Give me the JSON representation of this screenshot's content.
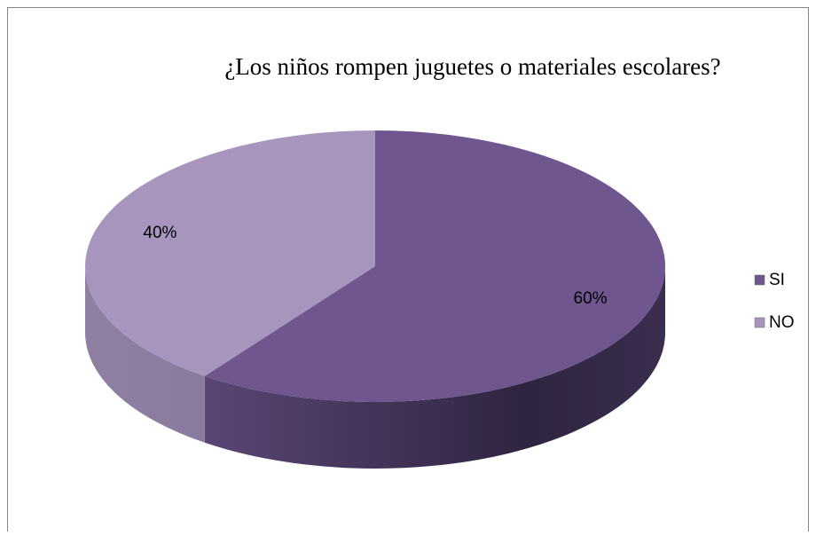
{
  "chart_data": {
    "type": "pie",
    "title": "¿Los niños rompen juguetes o materiales escolares?",
    "categories": [
      "SI",
      "NO"
    ],
    "values": [
      60,
      40
    ],
    "value_labels": [
      "60%",
      "40%"
    ],
    "colors": [
      "#6f568f",
      "#a795bd"
    ],
    "legend": "right"
  }
}
